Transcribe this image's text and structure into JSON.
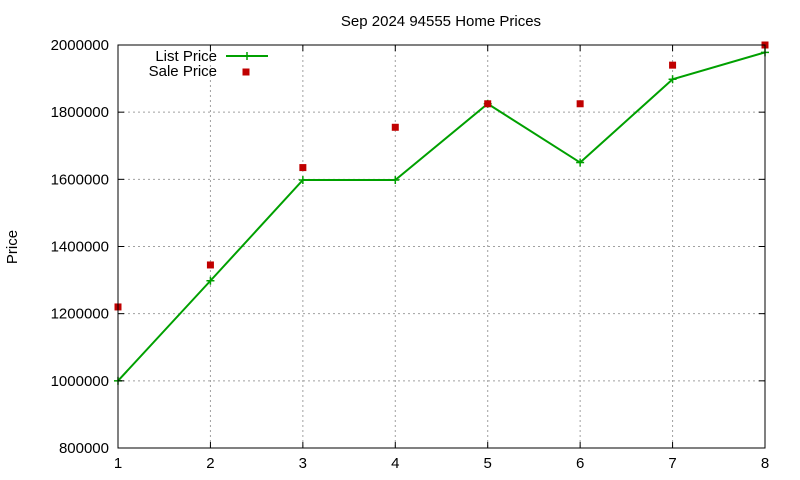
{
  "chart_data": {
    "type": "line",
    "title": "Sep 2024 94555 Home Prices",
    "xlabel": "",
    "ylabel": "Price",
    "x": [
      1,
      2,
      3,
      4,
      5,
      6,
      7,
      8
    ],
    "xlim": [
      1,
      8
    ],
    "ylim": [
      800000,
      2000000
    ],
    "xticks": [
      "1",
      "2",
      "3",
      "4",
      "5",
      "6",
      "7",
      "8"
    ],
    "yticks": [
      "800000",
      "1000000",
      "1200000",
      "1400000",
      "1600000",
      "1800000",
      "2000000"
    ],
    "grid": true,
    "legend_position": "top-left",
    "series": [
      {
        "name": "List Price",
        "style": "line-with-plus-markers",
        "color": "#00a000",
        "values": [
          1000000,
          1298000,
          1598000,
          1598000,
          1825000,
          1650000,
          1898000,
          1978000
        ]
      },
      {
        "name": "Sale Price",
        "style": "square-markers",
        "color": "#c00000",
        "values": [
          1220000,
          1345000,
          1635000,
          1755000,
          1825000,
          1825000,
          1940000,
          2000000
        ]
      }
    ]
  }
}
